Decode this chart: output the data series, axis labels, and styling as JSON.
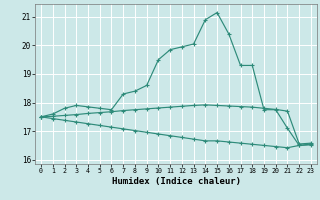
{
  "xlabel": "Humidex (Indice chaleur)",
  "bg_color": "#cce8e8",
  "grid_color": "#ffffff",
  "line_color": "#2e8b7a",
  "xlim": [
    -0.5,
    23.5
  ],
  "ylim": [
    15.85,
    21.45
  ],
  "yticks": [
    16,
    17,
    18,
    19,
    20,
    21
  ],
  "xticks": [
    0,
    1,
    2,
    3,
    4,
    5,
    6,
    7,
    8,
    9,
    10,
    11,
    12,
    13,
    14,
    15,
    16,
    17,
    18,
    19,
    20,
    21,
    22,
    23
  ],
  "line1_x": [
    0,
    1,
    2,
    3,
    4,
    5,
    6,
    7,
    8,
    9,
    10,
    11,
    12,
    13,
    14,
    15,
    16,
    17,
    18,
    19,
    20,
    21,
    22,
    23
  ],
  "line1_y": [
    17.5,
    17.6,
    17.8,
    17.9,
    17.85,
    17.8,
    17.75,
    18.3,
    18.4,
    18.6,
    19.5,
    19.85,
    19.95,
    20.05,
    20.9,
    21.15,
    20.4,
    19.3,
    19.3,
    17.75,
    17.75,
    17.1,
    16.5,
    16.55
  ],
  "line2_x": [
    0,
    1,
    2,
    3,
    4,
    5,
    6,
    7,
    8,
    9,
    10,
    11,
    12,
    13,
    14,
    15,
    16,
    17,
    18,
    19,
    20,
    21,
    22,
    23
  ],
  "line2_y": [
    17.5,
    17.52,
    17.55,
    17.58,
    17.62,
    17.65,
    17.68,
    17.72,
    17.75,
    17.78,
    17.81,
    17.84,
    17.87,
    17.9,
    17.92,
    17.9,
    17.88,
    17.86,
    17.84,
    17.8,
    17.76,
    17.7,
    16.55,
    16.58
  ],
  "line3_x": [
    0,
    1,
    2,
    3,
    4,
    5,
    6,
    7,
    8,
    9,
    10,
    11,
    12,
    13,
    14,
    15,
    16,
    17,
    18,
    19,
    20,
    21,
    22,
    23
  ],
  "line3_y": [
    17.5,
    17.44,
    17.38,
    17.32,
    17.26,
    17.2,
    17.14,
    17.08,
    17.02,
    16.96,
    16.9,
    16.84,
    16.78,
    16.72,
    16.66,
    16.66,
    16.62,
    16.58,
    16.54,
    16.5,
    16.46,
    16.42,
    16.5,
    16.52
  ]
}
